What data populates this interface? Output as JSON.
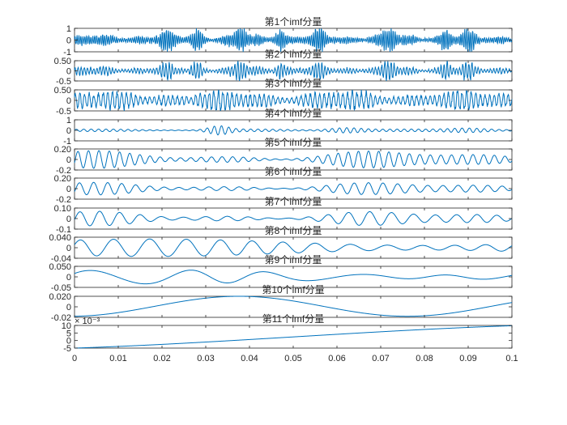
{
  "chart_data": {
    "type": "line",
    "line_color": "#0072BD",
    "xlim": [
      0,
      0.1
    ],
    "x_ticks": [
      "0",
      "0.01",
      "0.02",
      "0.03",
      "0.04",
      "0.05",
      "0.06",
      "0.07",
      "0.08",
      "0.09",
      "0.1"
    ],
    "subplots": [
      {
        "title": "第1个imf分量",
        "ylim": [
          -1,
          1
        ],
        "y_ticks": [
          "1",
          "0",
          "-1"
        ],
        "y_exponent": "",
        "amplitude": 0.9,
        "cycles": 220,
        "style": "bursty"
      },
      {
        "title": "第2个imf分量",
        "ylim": [
          -0.5,
          0.5
        ],
        "y_ticks": [
          "0.50",
          "0",
          "-0.5"
        ],
        "y_exponent": "",
        "amplitude": 0.4,
        "cycles": 140,
        "style": "bursty"
      },
      {
        "title": "第3个imf分量",
        "ylim": [
          -0.5,
          0.5
        ],
        "y_ticks": [
          "0.50",
          "0",
          "-0.5"
        ],
        "y_exponent": "",
        "amplitude": 0.45,
        "cycles": 95,
        "style": "dense"
      },
      {
        "title": "第4个imf分量",
        "ylim": [
          -1,
          1
        ],
        "y_ticks": [
          "1",
          "0",
          "-1"
        ],
        "y_exponent": "",
        "amplitude": 0.3,
        "cycles": 60,
        "style": "packets"
      },
      {
        "title": "第5个imf分量",
        "ylim": [
          -0.2,
          0.2
        ],
        "y_ticks": [
          "0.20",
          "0",
          "-0.2"
        ],
        "y_exponent": "",
        "amplitude": 0.17,
        "cycles": 42,
        "style": "modulated"
      },
      {
        "title": "第6个imf分量",
        "ylim": [
          -0.2,
          0.2
        ],
        "y_ticks": [
          "0.20",
          "0",
          "-0.2"
        ],
        "y_exponent": "",
        "amplitude": 0.12,
        "cycles": 30,
        "style": "modulated"
      },
      {
        "title": "第7个imf分量",
        "ylim": [
          -0.1,
          0.1
        ],
        "y_ticks": [
          "0.10",
          "0",
          "-0.1"
        ],
        "y_exponent": "",
        "amplitude": 0.07,
        "cycles": 21,
        "style": "modulated"
      },
      {
        "title": "第8个imf分量",
        "ylim": [
          -0.04,
          0.04
        ],
        "y_ticks": [
          "0.040",
          "0",
          "-0.04"
        ],
        "y_exponent": "",
        "amplitude": 0.035,
        "cycles": 13,
        "style": "smooth"
      },
      {
        "title": "第9个imf分量",
        "ylim": [
          -0.05,
          0.05
        ],
        "y_ticks": [
          "0.050",
          "0",
          "-0.05"
        ],
        "y_exponent": "",
        "amplitude": 0.035,
        "cycles": 5,
        "style": "smooth"
      },
      {
        "title": "第10个imf分量",
        "ylim": [
          -0.02,
          0.02
        ],
        "y_ticks": [
          "0.020",
          "0",
          "-0.02"
        ],
        "y_exponent": "",
        "amplitude": 0.02,
        "cycles": 1.3,
        "style": "slow"
      },
      {
        "title": "第11个imf分量",
        "ylim": [
          -0.005,
          0.01
        ],
        "y_ticks": [
          "10",
          "5",
          "0",
          "-5"
        ],
        "y_exponent": "× 10⁻³",
        "start": -0.005,
        "end": 0.0098,
        "style": "trend"
      }
    ]
  }
}
